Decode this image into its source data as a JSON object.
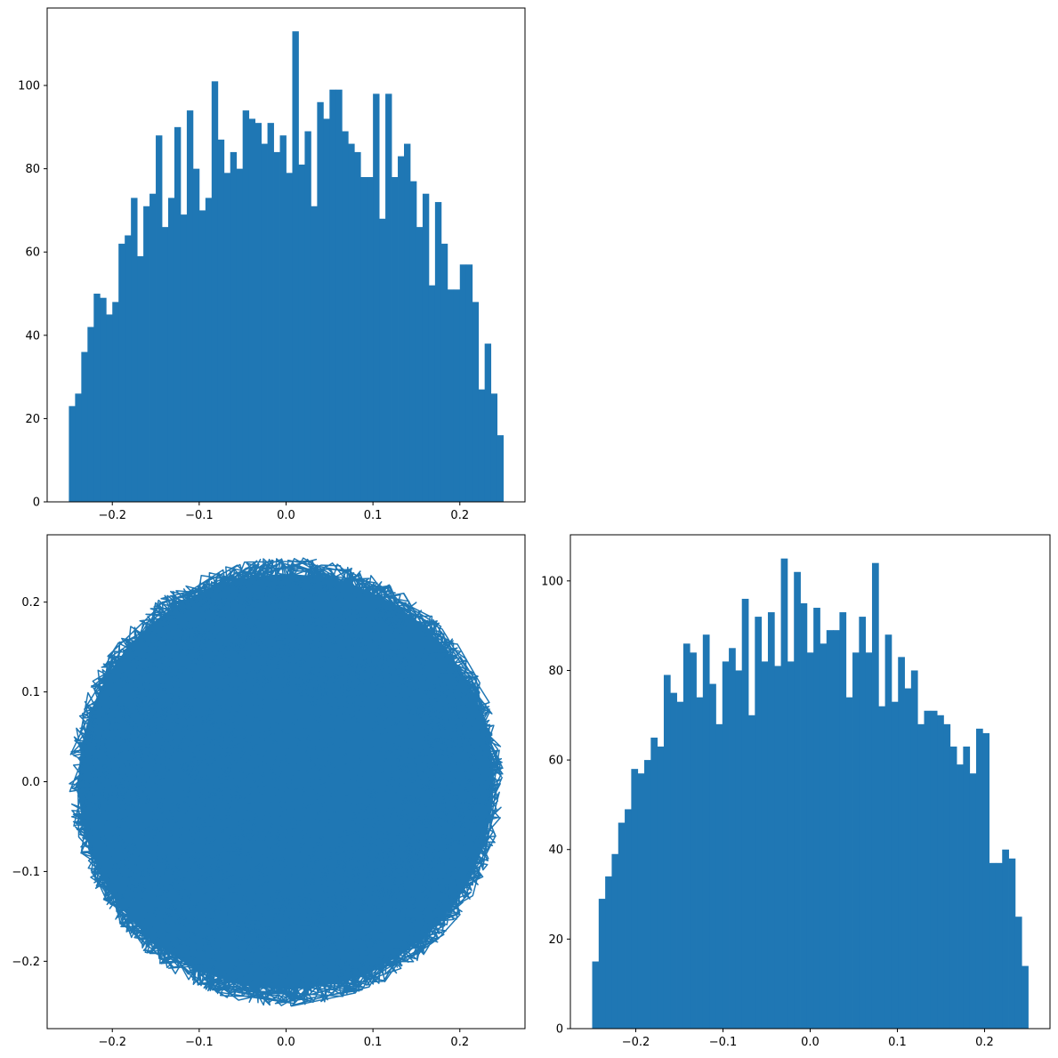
{
  "chart_data": [
    {
      "panel": "top-left",
      "type": "bar",
      "title": "",
      "xlabel": "",
      "ylabel": "",
      "xlim": [
        -0.275,
        0.275
      ],
      "ylim": [
        0,
        118.6
      ],
      "xticks": [
        -0.2,
        -0.1,
        0.0,
        0.1,
        0.2
      ],
      "xtick_labels": [
        "−0.2",
        "−0.1",
        "0.0",
        "0.1",
        "0.2"
      ],
      "yticks": [
        0,
        20,
        40,
        60,
        80,
        100
      ],
      "ytick_labels": [
        "0",
        "20",
        "40",
        "60",
        "80",
        "100"
      ],
      "bin_edges_start": -0.25,
      "bin_edges_end": 0.25,
      "values": [
        23,
        26,
        36,
        42,
        50,
        49,
        45,
        48,
        62,
        64,
        73,
        59,
        71,
        74,
        88,
        66,
        73,
        90,
        69,
        94,
        80,
        70,
        73,
        101,
        87,
        79,
        84,
        80,
        94,
        92,
        91,
        86,
        91,
        84,
        88,
        79,
        113,
        81,
        89,
        71,
        96,
        92,
        99,
        99,
        89,
        86,
        84,
        78,
        78,
        98,
        68,
        98,
        78,
        83,
        86,
        77,
        66,
        74,
        52,
        72,
        62,
        51,
        51,
        57,
        57,
        48,
        27,
        38,
        26,
        16
      ],
      "color": "#1f77b4"
    },
    {
      "panel": "bottom-left",
      "type": "line",
      "title": "",
      "xlabel": "",
      "ylabel": "",
      "xlim": [
        -0.275,
        0.275
      ],
      "ylim": [
        -0.275,
        0.275
      ],
      "xticks": [
        -0.2,
        -0.1,
        0.0,
        0.1,
        0.2
      ],
      "xtick_labels": [
        "−0.2",
        "−0.1",
        "0.0",
        "0.1",
        "0.2"
      ],
      "yticks": [
        -0.2,
        -0.1,
        0.0,
        0.1,
        0.2
      ],
      "ytick_labels": [
        "−0.2",
        "−0.1",
        "0.0",
        "0.1",
        "0.2"
      ],
      "shape": "dense random path filling a disc of radius 0.25 centred at (0, 0)",
      "radius": 0.25,
      "color": "#1f77b4"
    },
    {
      "panel": "bottom-right",
      "type": "bar",
      "title": "",
      "xlabel": "",
      "ylabel": "",
      "xlim": [
        -0.275,
        0.275
      ],
      "ylim": [
        0,
        110.3
      ],
      "xticks": [
        -0.2,
        -0.1,
        0.0,
        0.1,
        0.2
      ],
      "xtick_labels": [
        "−0.2",
        "−0.1",
        "0.0",
        "0.1",
        "0.2"
      ],
      "yticks": [
        0,
        20,
        40,
        60,
        80,
        100
      ],
      "ytick_labels": [
        "0",
        "20",
        "40",
        "60",
        "80",
        "100"
      ],
      "bin_edges_start": -0.25,
      "bin_edges_end": 0.25,
      "values": [
        15,
        29,
        34,
        39,
        46,
        49,
        58,
        57,
        60,
        65,
        63,
        79,
        75,
        73,
        86,
        84,
        74,
        88,
        77,
        68,
        82,
        85,
        80,
        96,
        70,
        92,
        82,
        93,
        81,
        105,
        82,
        102,
        95,
        84,
        94,
        86,
        89,
        89,
        93,
        74,
        84,
        92,
        84,
        104,
        72,
        88,
        73,
        83,
        76,
        80,
        68,
        71,
        71,
        70,
        68,
        63,
        59,
        63,
        57,
        67,
        66,
        37,
        37,
        40,
        38,
        25,
        14
      ],
      "color": "#1f77b4"
    }
  ]
}
